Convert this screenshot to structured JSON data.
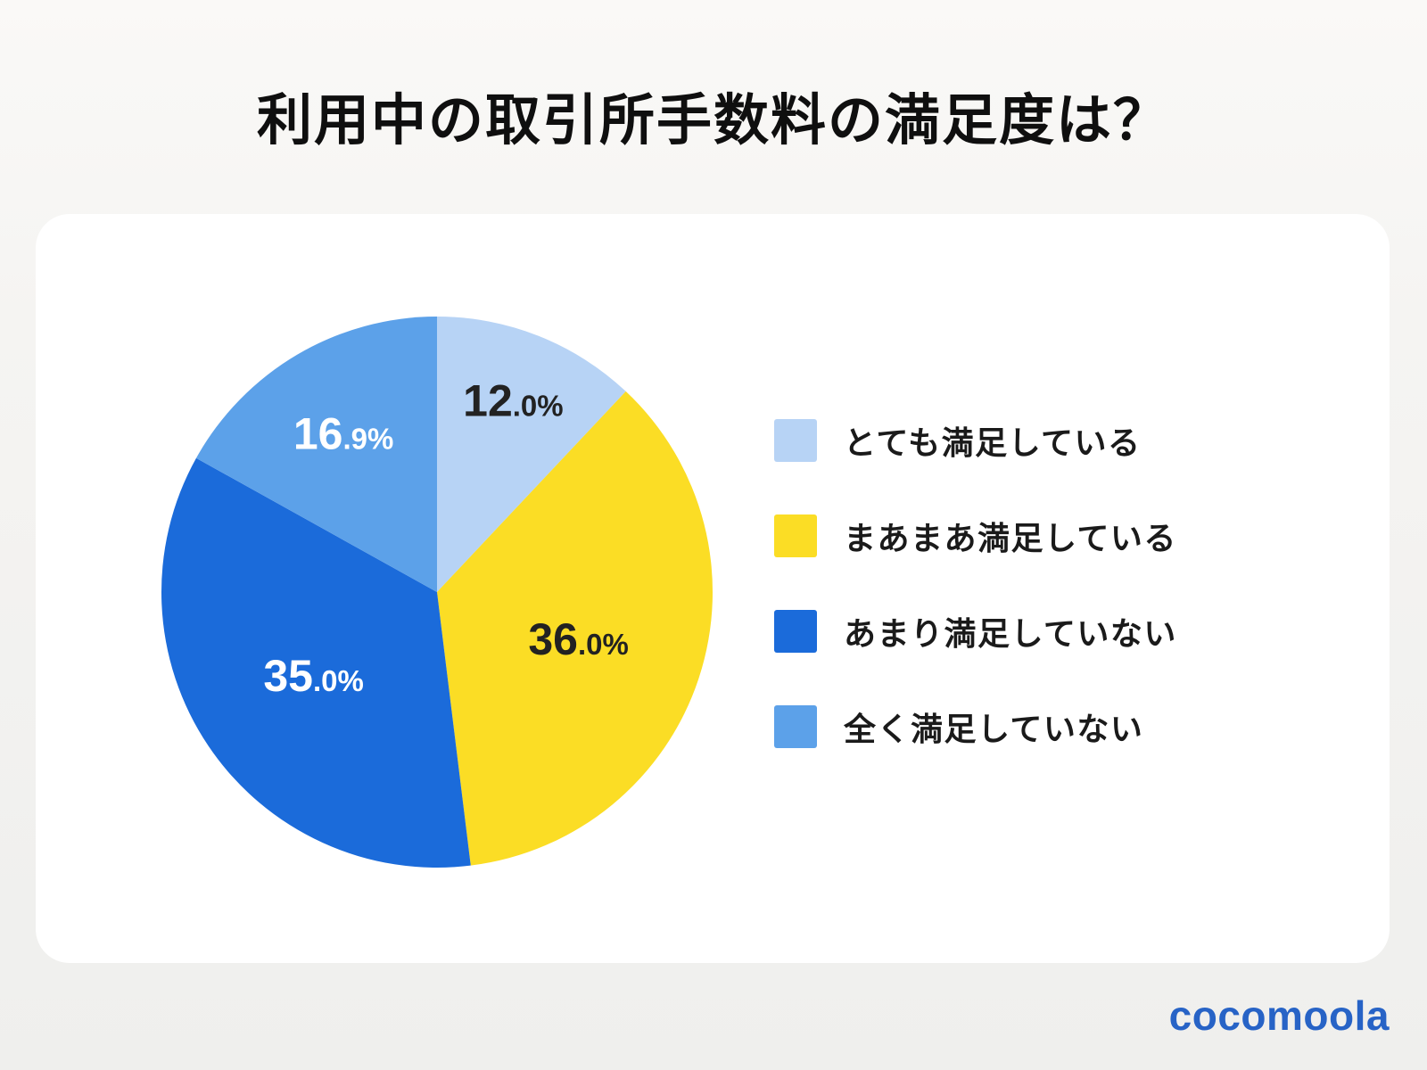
{
  "title": "利用中の取引所手数料の満足度は？",
  "brand": {
    "logo_text": "cocomoola",
    "logo_color": "#2763C6"
  },
  "theme": {
    "background_top": "#FAF9F7",
    "background_bottom": "#EFEFED",
    "card_color": "#FFFFFF",
    "title_color": "#0F0F0F",
    "legend_text_color": "#1A1A1A"
  },
  "chart_data": {
    "type": "pie",
    "title": "利用中の取引所手数料の満足度は？",
    "legend_position": "right",
    "start_angle_deg": 0,
    "direction": "clockwise",
    "value_suffix": "%",
    "slices": [
      {
        "label": "とても満足している",
        "value": 12.0,
        "color": "#B7D3F5",
        "text_color": "#222222"
      },
      {
        "label": "まあまあ満足している",
        "value": 36.0,
        "color": "#FBDD25",
        "text_color": "#222222"
      },
      {
        "label": "あまり満足していない",
        "value": 35.0,
        "color": "#1B6BDA",
        "text_color": "#FFFFFF"
      },
      {
        "label": "全く満足していない",
        "value": 16.9,
        "color": "#5CA1E9",
        "text_color": "#FFFFFF"
      }
    ],
    "label_radius_fractions": [
      0.75,
      0.54,
      0.54,
      0.67
    ]
  }
}
